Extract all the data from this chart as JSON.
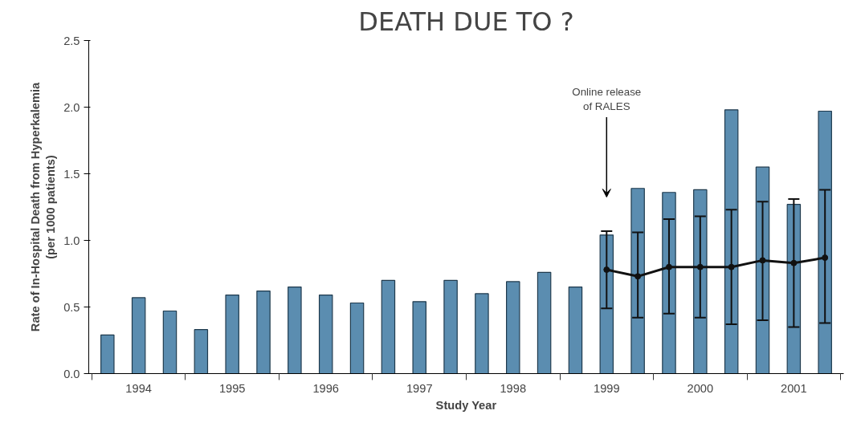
{
  "chart_data": {
    "type": "bar",
    "title": "DEATH DUE TO ?",
    "xlabel": "Study Year",
    "ylabel": "Rate of In-Hospital Death from Hyperkalemia\n(per 1000 patients)",
    "categories": [
      null,
      "1994",
      null,
      null,
      "1995",
      null,
      null,
      "1996",
      null,
      null,
      "1997",
      null,
      null,
      "1998",
      null,
      null,
      "1999",
      null,
      null,
      "2000",
      null,
      null,
      "2001",
      null
    ],
    "series": [
      {
        "color": "#5b8db0",
        "values": [
          0.29,
          0.57,
          0.47,
          0.33,
          0.59,
          0.62,
          0.65,
          0.59,
          0.53,
          0.7,
          0.54,
          0.7,
          0.6,
          0.69,
          0.76,
          0.65,
          1.04,
          1.39,
          1.36,
          1.38,
          1.98,
          1.55,
          1.27,
          1.97
        ]
      },
      {
        "type": "line",
        "color": "#111111",
        "marker": "circle",
        "line_style": "solid",
        "values": [
          null,
          null,
          null,
          null,
          null,
          null,
          null,
          null,
          null,
          null,
          null,
          null,
          null,
          null,
          null,
          null,
          0.78,
          0.73,
          0.8,
          0.8,
          0.8,
          0.85,
          0.83,
          0.87
        ],
        "errors": [
          null,
          null,
          null,
          null,
          null,
          null,
          null,
          null,
          null,
          null,
          null,
          null,
          null,
          null,
          null,
          null,
          [
            0.49,
            1.07
          ],
          [
            0.42,
            1.06
          ],
          [
            0.45,
            1.16
          ],
          [
            0.42,
            1.18
          ],
          [
            0.37,
            1.23
          ],
          [
            0.4,
            1.29
          ],
          [
            0.35,
            1.31
          ],
          [
            0.38,
            1.38
          ]
        ]
      }
    ],
    "annotations": [
      "Online release\nof RALES"
    ],
    "ylim": [
      0,
      2.5
    ],
    "yticks": [
      {
        "value": 0,
        "label": "0.0"
      },
      {
        "value": 0.5,
        "label": "0.5"
      },
      {
        "value": 1,
        "label": "1.0"
      },
      {
        "value": 1.5,
        "label": "1.5"
      },
      {
        "value": 2,
        "label": "2.0"
      },
      {
        "value": 2.5,
        "label": "2.5"
      }
    ],
    "grid": false
  }
}
